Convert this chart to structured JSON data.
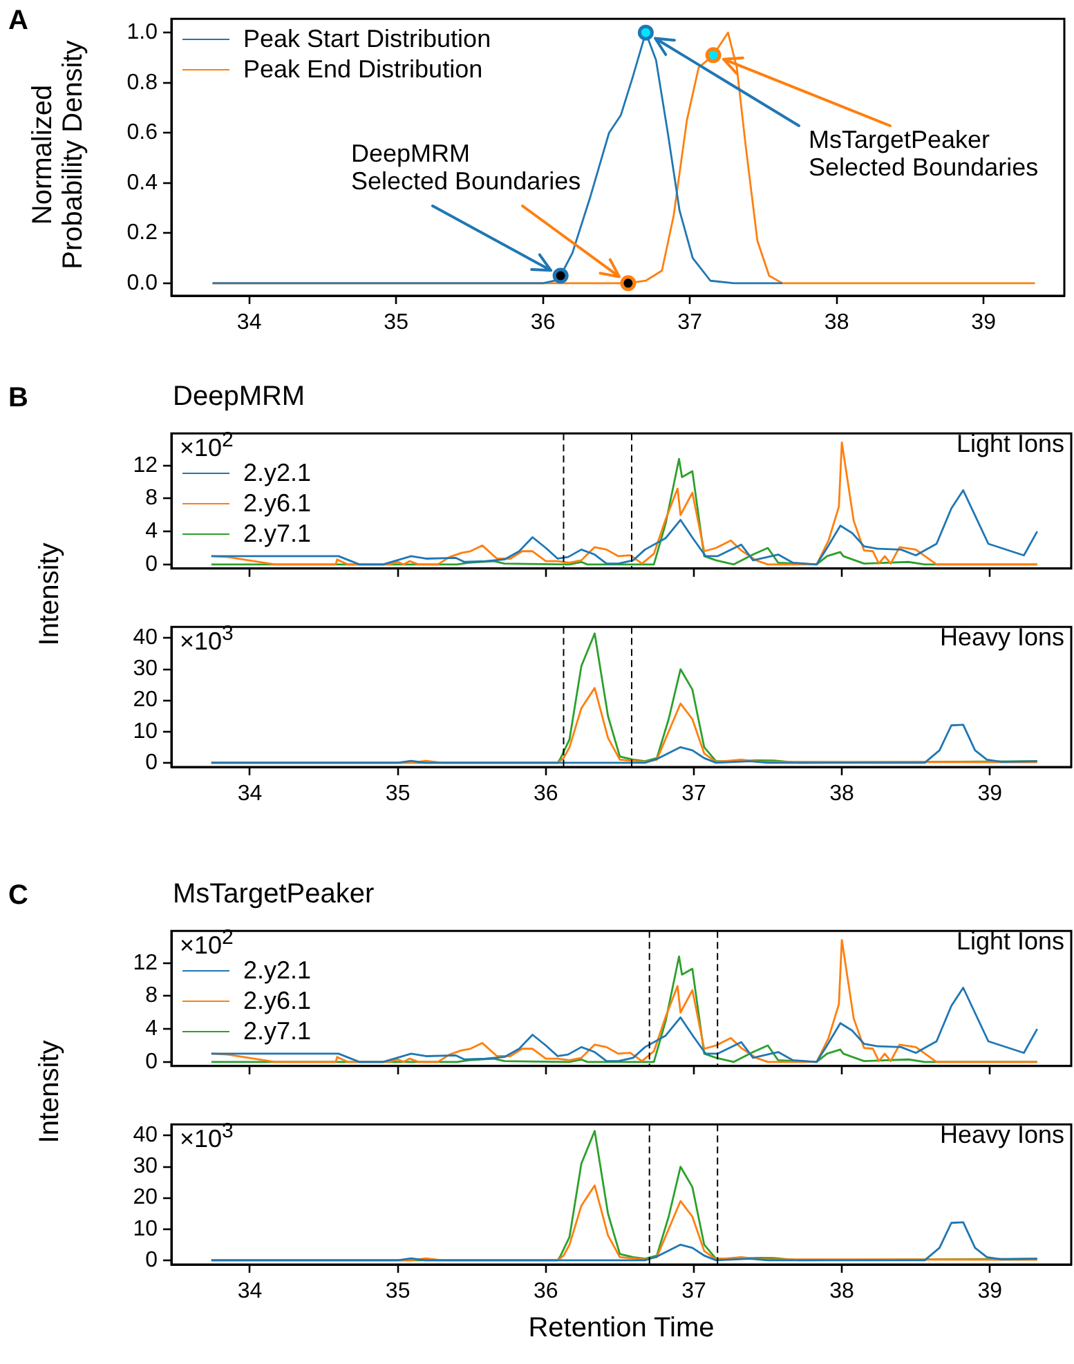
{
  "chart_data": [
    {
      "type": "line",
      "ylabel": "Normalized\nProbability Density",
      "annotations": [
        "A",
        {
          "text": "DeepMRM\nSelected Boundaries",
          "x": 36.12,
          "y": 0.03
        },
        {
          "text": "MsTargetPeaker\nSelected Boundaries",
          "x": 36.7,
          "y": 1.0
        }
      ],
      "legend": "top left",
      "xlim": [
        33.47,
        39.55
      ],
      "xticks": [
        34,
        35,
        36,
        37,
        38,
        39
      ],
      "ylim": [
        -0.05,
        1.055
      ],
      "yticks": [
        {
          "value": 0,
          "label": "0.0"
        },
        {
          "value": 0.2,
          "label": "0.2"
        },
        {
          "value": 0.4,
          "label": "0.4"
        },
        {
          "value": 0.6,
          "label": "0.6"
        },
        {
          "value": 0.8,
          "label": "0.8"
        },
        {
          "value": 1,
          "label": "1.0"
        }
      ],
      "series": [
        {
          "name": "Peak Start Distribution",
          "color": "#1f77b4",
          "x": [
            33.75,
            36.0,
            36.08,
            36.12,
            36.2,
            36.32,
            36.45,
            36.53,
            36.61,
            36.7,
            36.77,
            36.85,
            36.93,
            37.02,
            37.14,
            37.3,
            37.63
          ],
          "values": [
            0,
            0,
            0.01,
            0.03,
            0.12,
            0.34,
            0.6,
            0.67,
            0.82,
            1.0,
            0.89,
            0.6,
            0.29,
            0.1,
            0.01,
            0,
            0
          ]
        },
        {
          "name": "Peak End Distribution",
          "color": "#ff7f0e",
          "x": [
            33.75,
            36.58,
            36.7,
            36.81,
            36.89,
            36.98,
            37.06,
            37.16,
            37.26,
            37.32,
            37.38,
            37.46,
            37.54,
            37.63,
            39.35
          ],
          "values": [
            0,
            0,
            0.01,
            0.05,
            0.27,
            0.65,
            0.86,
            0.91,
            1.0,
            0.86,
            0.55,
            0.17,
            0.03,
            0,
            0
          ]
        },
        {
          "type": "scatter",
          "color": "#000000",
          "colors": [
            "#1f77b4",
            "#ff7f0e"
          ],
          "x": [
            36.12,
            36.58
          ],
          "values": [
            0.03,
            0.0
          ]
        },
        {
          "type": "scatter",
          "color": "#00e5ff",
          "colors": [
            "#1f77b4",
            "#ff7f0e"
          ],
          "x": [
            36.7,
            37.16
          ],
          "values": [
            1.0,
            0.91
          ]
        }
      ]
    },
    {
      "type": "line",
      "title": "DeepMRM",
      "ylabel": "Intensity",
      "annotations": [
        "B",
        "×10$^{2}$",
        "Light Ions"
      ],
      "legend": "left",
      "tick_labels": "y",
      "xlim": [
        33.47,
        39.55
      ],
      "xticks": [
        34,
        35,
        36,
        37,
        38,
        39
      ],
      "ylim": [
        -0.5,
        15.9
      ],
      "yticks": [
        0,
        4,
        8,
        12
      ],
      "ref_lines": [
        {
          "axis": "x",
          "value": 36.12,
          "color": "#000000",
          "line_style": "dashed"
        },
        {
          "axis": "x",
          "value": 36.58,
          "color": "#000000",
          "line_style": "dashed"
        }
      ],
      "series": [
        {
          "name": "2.y2.1",
          "color": "#1f77b4",
          "x": [
            33.74,
            34.6,
            34.74,
            34.9,
            35.09,
            35.19,
            35.39,
            35.45,
            35.59,
            35.72,
            35.82,
            35.91,
            36.0,
            36.08,
            36.15,
            36.24,
            36.33,
            36.41,
            36.49,
            36.59,
            36.67,
            36.81,
            36.91,
            37.0,
            37.08,
            37.16,
            37.32,
            37.4,
            37.57,
            37.67,
            37.83,
            37.9,
            37.99,
            38.07,
            38.15,
            38.24,
            38.4,
            38.5,
            38.56,
            38.64,
            38.74,
            38.82,
            38.99,
            39.23,
            39.32
          ],
          "values": [
            1,
            1,
            0,
            0,
            1,
            0.7,
            0.8,
            0.3,
            0.4,
            0.6,
            1.6,
            3.3,
            2,
            0.7,
            0.9,
            1.8,
            1.2,
            0.1,
            0.1,
            0.5,
            1.8,
            3.2,
            5.4,
            3,
            1,
            1,
            2.4,
            0.5,
            1.2,
            0.2,
            0,
            2,
            4.7,
            3.8,
            2.2,
            1.9,
            1.8,
            1.1,
            1.7,
            2.5,
            6.8,
            9,
            2.5,
            1.1,
            4
          ]
        },
        {
          "name": "2.y6.1",
          "color": "#ff7f0e",
          "x": [
            33.74,
            33.85,
            34.17,
            34.58,
            34.59,
            34.66,
            34.94,
            35.0,
            35.04,
            35.08,
            35.14,
            35.27,
            35.35,
            35.43,
            35.49,
            35.57,
            35.67,
            35.76,
            35.84,
            35.91,
            36.0,
            36.08,
            36.16,
            36.24,
            36.33,
            36.41,
            36.49,
            36.57,
            36.65,
            36.73,
            36.81,
            36.89,
            36.91,
            36.99,
            37.07,
            37.15,
            37.25,
            37.32,
            37.42,
            37.5,
            37.83,
            37.91,
            37.98,
            38.0,
            38.08,
            38.15,
            38.21,
            38.25,
            38.29,
            38.33,
            38.39,
            38.5,
            38.64,
            39.32
          ],
          "values": [
            1,
            0.9,
            0,
            0,
            0.6,
            0,
            0,
            0.3,
            0,
            0.4,
            0,
            0,
            0.9,
            1.4,
            1.6,
            2.3,
            0.7,
            0.7,
            1.6,
            1.6,
            0.4,
            0.4,
            0.2,
            0.5,
            2.1,
            1.8,
            1,
            1.1,
            0.1,
            1.3,
            5.5,
            9.2,
            6,
            8.7,
            1.6,
            2,
            2.9,
            1.7,
            0.5,
            0,
            0,
            2.9,
            7,
            14.8,
            5.3,
            1.7,
            1.6,
            0.1,
            1,
            0.1,
            2.1,
            1.8,
            0,
            0
          ]
        },
        {
          "name": "2.y7.1",
          "color": "#2ca02c",
          "x": [
            33.74,
            35.4,
            35.48,
            35.65,
            35.72,
            36.16,
            36.24,
            36.28,
            36.73,
            36.81,
            36.9,
            36.92,
            36.99,
            37.07,
            37.15,
            37.27,
            37.4,
            37.5,
            37.57,
            37.83,
            37.9,
            37.99,
            38.01,
            38.15,
            38.45,
            38.56,
            39.32
          ],
          "values": [
            0,
            0,
            0.2,
            0.4,
            0.1,
            0,
            0.3,
            0,
            0,
            5,
            12.8,
            10.6,
            11.3,
            1,
            0.5,
            0,
            1.2,
            2,
            0.2,
            0,
            1,
            1.5,
            1,
            0.1,
            0.3,
            0,
            0
          ]
        }
      ]
    },
    {
      "type": "line",
      "annotations": [
        "×10$^{3}$",
        "Heavy Ions"
      ],
      "xlim": [
        33.47,
        39.55
      ],
      "xticks": [
        34,
        35,
        36,
        37,
        38,
        39
      ],
      "ylim": [
        -1.35,
        43.6
      ],
      "yticks": [
        0,
        10,
        20,
        30,
        40
      ],
      "ref_lines": [
        {
          "axis": "x",
          "value": 36.12,
          "color": "#000000",
          "line_style": "dashed"
        },
        {
          "axis": "x",
          "value": 36.58,
          "color": "#000000",
          "line_style": "dashed"
        }
      ],
      "series": [
        {
          "color": "#1f77b4",
          "x": [
            33.74,
            35.0,
            35.09,
            35.19,
            36.67,
            36.75,
            36.91,
            36.99,
            37.07,
            37.15,
            37.38,
            37.5,
            38.56,
            38.66,
            38.74,
            38.82,
            38.9,
            38.98,
            39.08,
            39.32
          ],
          "values": [
            0,
            0,
            0.6,
            0,
            0,
            1.2,
            5,
            4,
            1.5,
            0,
            0.5,
            0,
            0,
            4,
            12,
            12.2,
            4,
            1,
            0.3,
            0.5
          ]
        },
        {
          "color": "#ff7f0e",
          "x": [
            33.74,
            35.09,
            35.19,
            35.3,
            36.08,
            36.12,
            36.16,
            36.24,
            36.33,
            36.42,
            36.5,
            36.67,
            36.75,
            36.83,
            36.91,
            36.99,
            37.07,
            37.15,
            37.32,
            37.46,
            39.32
          ],
          "values": [
            0,
            0,
            0.6,
            0,
            0,
            1.5,
            5,
            17.5,
            24,
            8,
            1,
            0.3,
            1,
            10,
            19,
            14,
            3,
            0.3,
            1,
            0.3,
            0.2
          ]
        },
        {
          "color": "#2ca02c",
          "x": [
            33.74,
            36.08,
            36.1,
            36.16,
            36.24,
            36.33,
            36.42,
            36.5,
            36.59,
            36.67,
            36.75,
            36.83,
            36.91,
            36.99,
            37.07,
            37.15,
            37.3,
            37.42,
            37.54,
            37.71,
            39.32
          ],
          "values": [
            0,
            0,
            1.5,
            7.5,
            31,
            41.5,
            15,
            2,
            1,
            0.5,
            1.5,
            14,
            30,
            23.5,
            5,
            0.5,
            0.5,
            0.8,
            0.7,
            0,
            0.5
          ]
        }
      ]
    },
    {
      "type": "line",
      "title": "MsTargetPeaker",
      "ylabel": "Intensity",
      "annotations": [
        "C",
        "×10$^{2}$",
        "Light Ions"
      ],
      "legend": "left",
      "tick_labels": "y",
      "xlim": [
        33.47,
        39.55
      ],
      "xticks": [
        34,
        35,
        36,
        37,
        38,
        39
      ],
      "ylim": [
        -0.5,
        15.9
      ],
      "yticks": [
        0,
        4,
        8,
        12
      ],
      "ref_lines": [
        {
          "axis": "x",
          "value": 36.7,
          "color": "#000000",
          "line_style": "dashed"
        },
        {
          "axis": "x",
          "value": 37.16,
          "color": "#000000",
          "line_style": "dashed"
        }
      ],
      "series": [
        {
          "name": "2.y2.1",
          "color": "#1f77b4",
          "x": [
            33.74,
            34.6,
            34.74,
            34.9,
            35.09,
            35.19,
            35.39,
            35.45,
            35.59,
            35.72,
            35.82,
            35.91,
            36.0,
            36.08,
            36.15,
            36.24,
            36.33,
            36.41,
            36.49,
            36.59,
            36.67,
            36.81,
            36.91,
            37.0,
            37.08,
            37.16,
            37.32,
            37.4,
            37.57,
            37.67,
            37.83,
            37.9,
            37.99,
            38.07,
            38.15,
            38.24,
            38.4,
            38.5,
            38.56,
            38.64,
            38.74,
            38.82,
            38.99,
            39.23,
            39.32
          ],
          "values": [
            1,
            1,
            0,
            0,
            1,
            0.7,
            0.8,
            0.3,
            0.4,
            0.6,
            1.6,
            3.3,
            2,
            0.7,
            0.9,
            1.8,
            1.2,
            0.1,
            0.1,
            0.5,
            1.8,
            3.2,
            5.4,
            3,
            1,
            1,
            2.4,
            0.5,
            1.2,
            0.2,
            0,
            2,
            4.7,
            3.8,
            2.2,
            1.9,
            1.8,
            1.1,
            1.7,
            2.5,
            6.8,
            9,
            2.5,
            1.1,
            4
          ]
        },
        {
          "name": "2.y6.1",
          "color": "#ff7f0e",
          "x": [
            33.74,
            33.85,
            34.17,
            34.58,
            34.59,
            34.66,
            34.94,
            35.0,
            35.04,
            35.08,
            35.14,
            35.27,
            35.35,
            35.43,
            35.49,
            35.57,
            35.67,
            35.76,
            35.84,
            35.91,
            36.0,
            36.08,
            36.16,
            36.24,
            36.33,
            36.41,
            36.49,
            36.57,
            36.65,
            36.73,
            36.81,
            36.89,
            36.91,
            36.99,
            37.07,
            37.15,
            37.25,
            37.32,
            37.42,
            37.5,
            37.83,
            37.91,
            37.98,
            38.0,
            38.08,
            38.15,
            38.21,
            38.25,
            38.29,
            38.33,
            38.39,
            38.5,
            38.64,
            39.32
          ],
          "values": [
            1,
            0.9,
            0,
            0,
            0.6,
            0,
            0,
            0.3,
            0,
            0.4,
            0,
            0,
            0.9,
            1.4,
            1.6,
            2.3,
            0.7,
            0.7,
            1.6,
            1.6,
            0.4,
            0.4,
            0.2,
            0.5,
            2.1,
            1.8,
            1,
            1.1,
            0.1,
            1.3,
            5.5,
            9.2,
            6,
            8.7,
            1.6,
            2,
            2.9,
            1.7,
            0.5,
            0,
            0,
            2.9,
            7,
            14.8,
            5.3,
            1.7,
            1.6,
            0.1,
            1,
            0.1,
            2.1,
            1.8,
            0,
            0
          ]
        },
        {
          "name": "2.y7.1",
          "color": "#2ca02c",
          "x": [
            33.74,
            35.4,
            35.48,
            35.65,
            35.72,
            36.16,
            36.24,
            36.28,
            36.73,
            36.81,
            36.9,
            36.92,
            36.99,
            37.07,
            37.15,
            37.27,
            37.4,
            37.5,
            37.57,
            37.83,
            37.9,
            37.99,
            38.01,
            38.15,
            38.45,
            38.56,
            39.32
          ],
          "values": [
            0,
            0,
            0.2,
            0.4,
            0.1,
            0,
            0.3,
            0,
            0,
            5,
            12.8,
            10.6,
            11.3,
            1,
            0.5,
            0,
            1.2,
            2,
            0.2,
            0,
            1,
            1.5,
            1,
            0.1,
            0.3,
            0,
            0
          ]
        }
      ]
    },
    {
      "type": "line",
      "xlabel": "Retention Time",
      "annotations": [
        "×10$^{3}$",
        "Heavy Ions"
      ],
      "xlim": [
        33.47,
        39.55
      ],
      "xticks": [
        34,
        35,
        36,
        37,
        38,
        39
      ],
      "ylim": [
        -1.35,
        43.6
      ],
      "yticks": [
        0,
        10,
        20,
        30,
        40
      ],
      "ref_lines": [
        {
          "axis": "x",
          "value": 36.7,
          "color": "#000000",
          "line_style": "dashed"
        },
        {
          "axis": "x",
          "value": 37.16,
          "color": "#000000",
          "line_style": "dashed"
        }
      ],
      "series": [
        {
          "color": "#1f77b4",
          "x": [
            33.74,
            35.0,
            35.09,
            35.19,
            36.67,
            36.75,
            36.91,
            36.99,
            37.07,
            37.15,
            37.38,
            37.5,
            38.56,
            38.66,
            38.74,
            38.82,
            38.9,
            38.98,
            39.08,
            39.32
          ],
          "values": [
            0,
            0,
            0.6,
            0,
            0,
            1.2,
            5,
            4,
            1.5,
            0,
            0.5,
            0,
            0,
            4,
            12,
            12.2,
            4,
            1,
            0.3,
            0.5
          ]
        },
        {
          "color": "#ff7f0e",
          "x": [
            33.74,
            35.09,
            35.19,
            35.3,
            36.08,
            36.12,
            36.16,
            36.24,
            36.33,
            36.42,
            36.5,
            36.67,
            36.75,
            36.83,
            36.91,
            36.99,
            37.07,
            37.15,
            37.32,
            37.46,
            39.32
          ],
          "values": [
            0,
            0,
            0.6,
            0,
            0,
            1.5,
            5,
            17.5,
            24,
            8,
            1,
            0.3,
            1,
            10,
            19,
            14,
            3,
            0.3,
            1,
            0.3,
            0.2
          ]
        },
        {
          "color": "#2ca02c",
          "x": [
            33.74,
            36.08,
            36.1,
            36.16,
            36.24,
            36.33,
            36.42,
            36.5,
            36.59,
            36.67,
            36.75,
            36.83,
            36.91,
            36.99,
            37.07,
            37.15,
            37.3,
            37.42,
            37.54,
            37.71,
            39.32
          ],
          "values": [
            0,
            0,
            1.5,
            7.5,
            31,
            41.5,
            15,
            2,
            1,
            0.5,
            1.5,
            14,
            30,
            23.5,
            5,
            0.5,
            0.5,
            0.8,
            0.7,
            0,
            0.5
          ]
        }
      ]
    }
  ]
}
